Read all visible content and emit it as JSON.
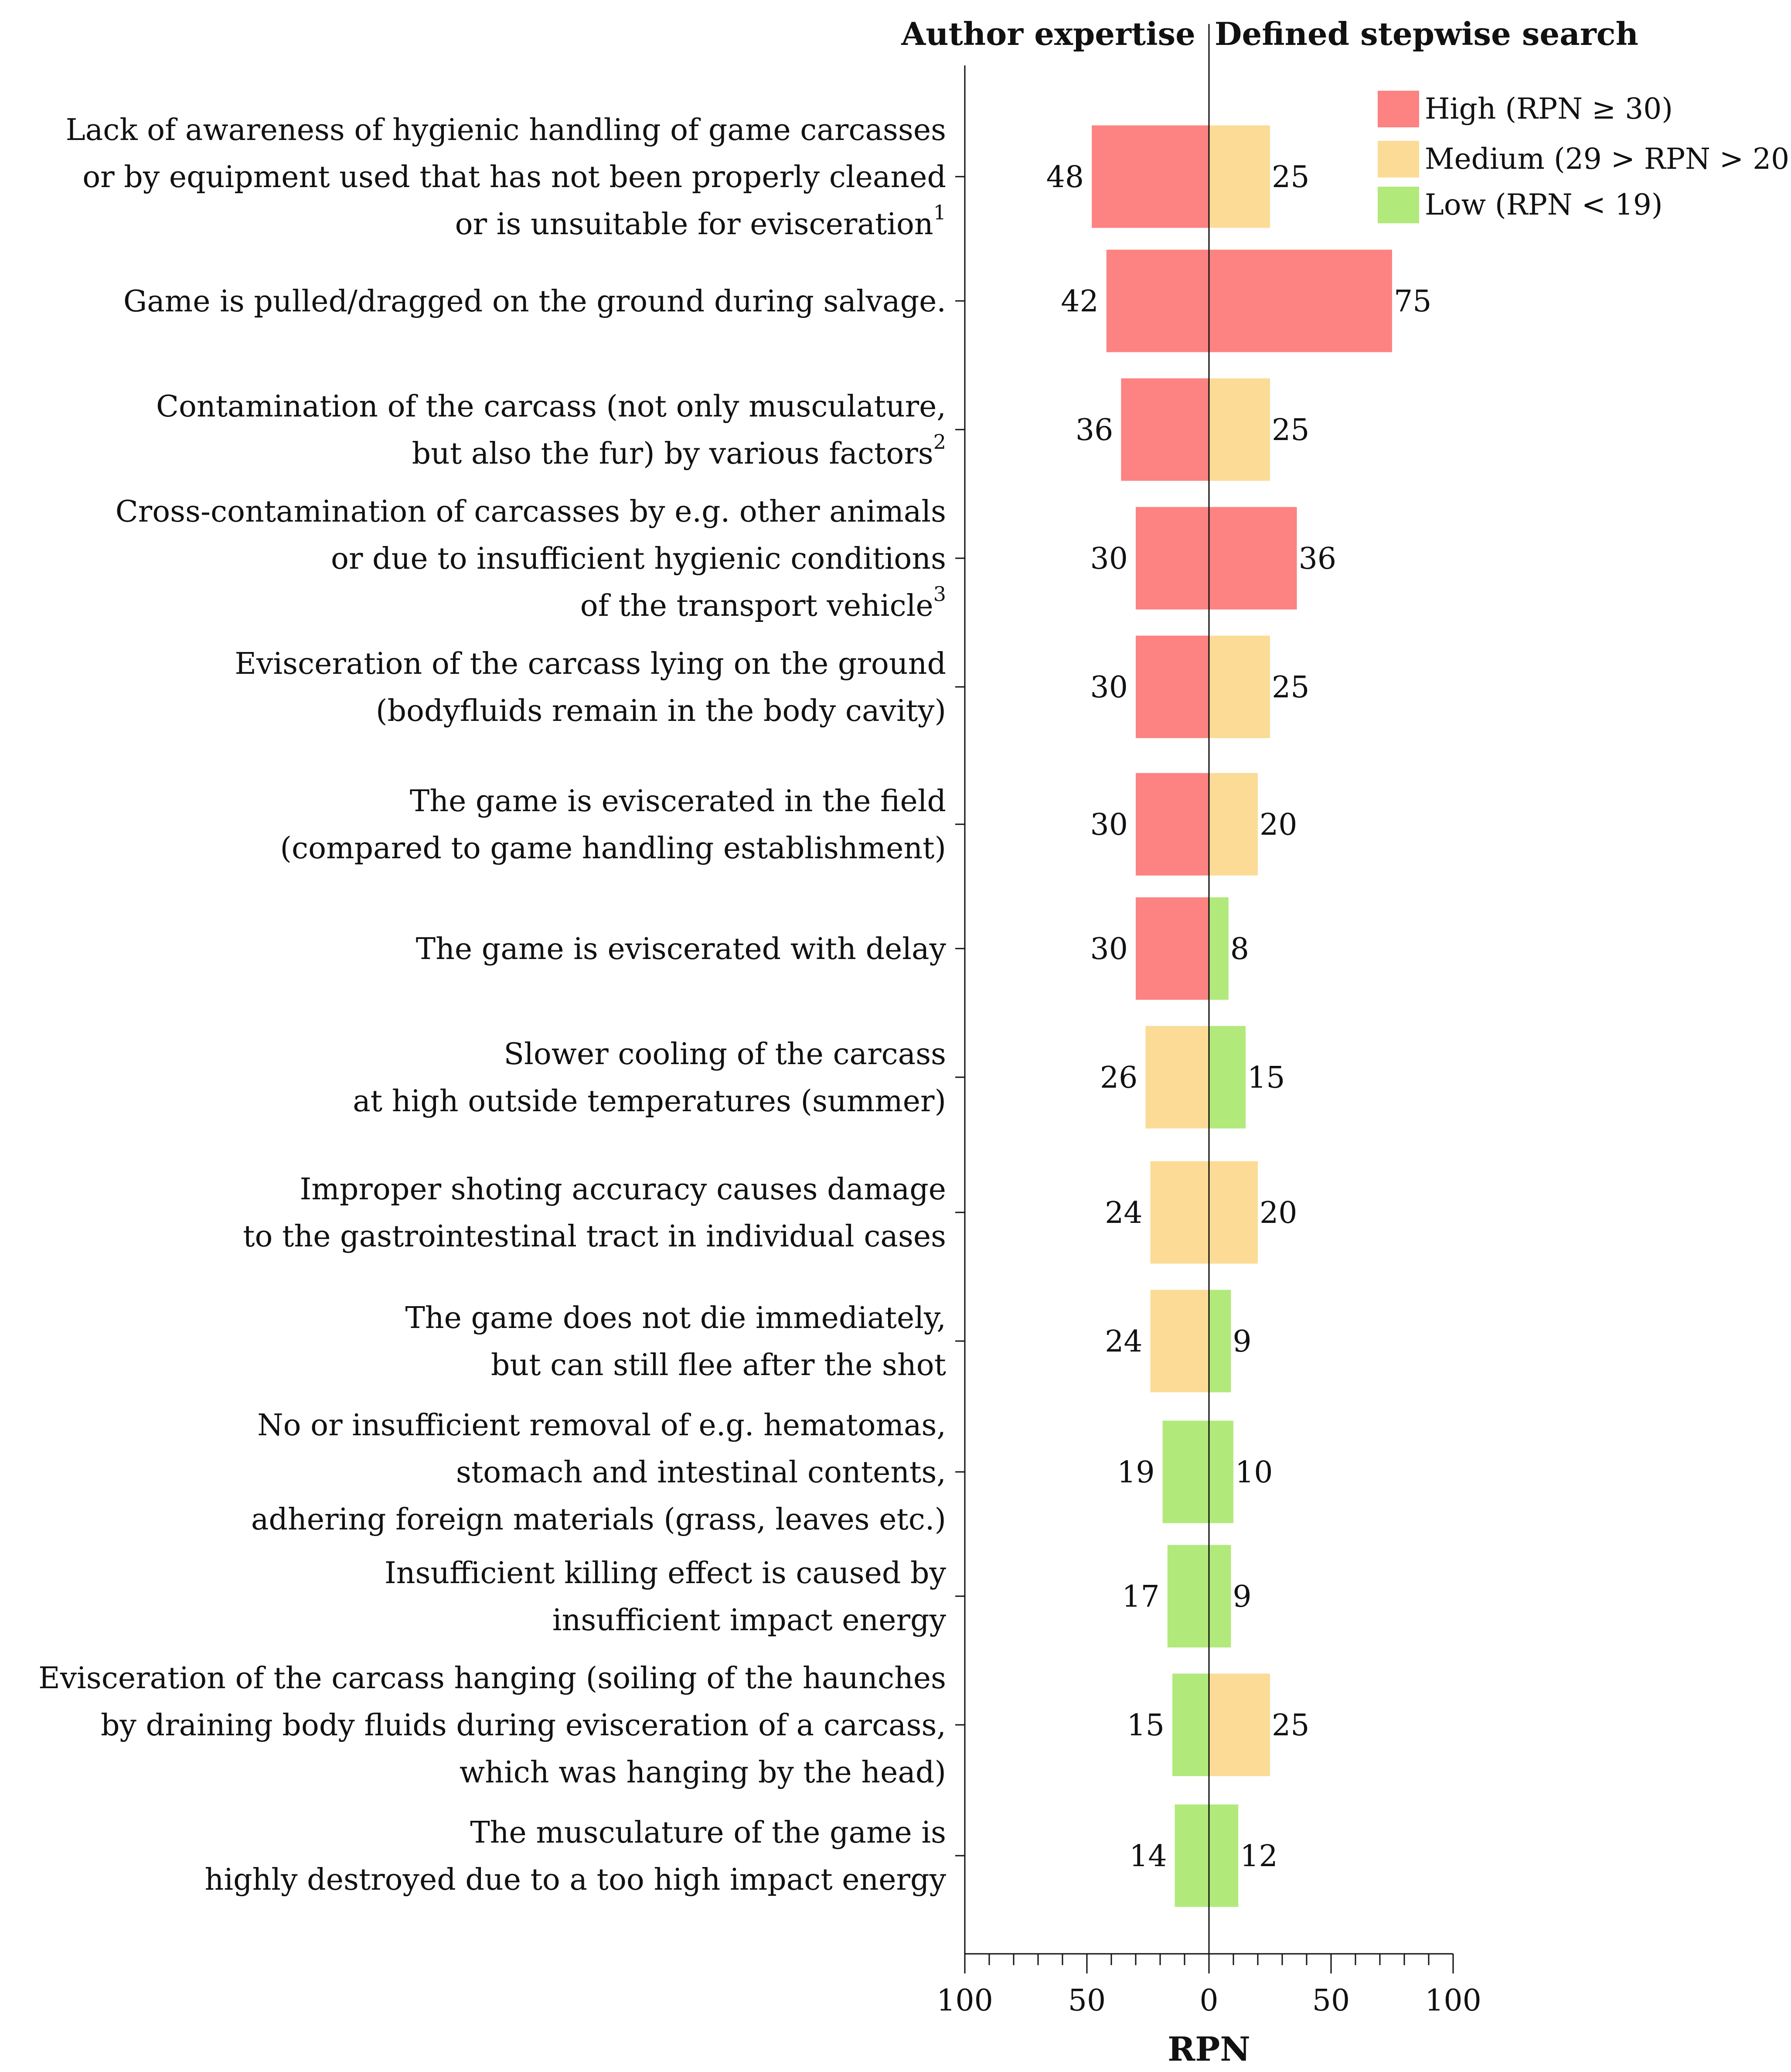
{
  "chart_data": {
    "type": "bar",
    "orientation": "horizontal",
    "layout": "diverging",
    "panel_titles": {
      "left": "Author expertise",
      "right": "Defined stepwise search"
    },
    "xlabel": "RPN",
    "xlim": [
      -100,
      100
    ],
    "xticks": [
      {
        "value": -100,
        "label": "100"
      },
      {
        "value": -50,
        "label": "50"
      },
      {
        "value": 0,
        "label": "0"
      },
      {
        "value": 50,
        "label": "50"
      },
      {
        "value": 100,
        "label": "100"
      }
    ],
    "colors": {
      "High": "#fd8282",
      "Medium": "#fbdb95",
      "Low": "#b1e97b"
    },
    "legend": [
      {
        "label": "High (RPN  ≥ 30)",
        "level": "High"
      },
      {
        "label": "Medium (29 > RPN > 20)",
        "level": "Medium"
      },
      {
        "label": "Low (RPN < 19)",
        "level": "Low"
      }
    ],
    "categories": [
      {
        "lines": [
          "Lack of awareness of hygienic handling of game carcasses",
          "or by equipment used that has not been properly cleaned",
          "or is unsuitable for evisceration"
        ],
        "sup": "1"
      },
      {
        "lines": [
          "Game is pulled/dragged on the ground during salvage."
        ],
        "sup": ""
      },
      {
        "lines": [
          "Contamination of the carcass (not only musculature,",
          "but also the fur) by various factors"
        ],
        "sup": "2"
      },
      {
        "lines": [
          "Cross-contamination of carcasses by e.g. other animals",
          "or due to insufficient hygienic conditions",
          "of the transport vehicle"
        ],
        "sup": "3"
      },
      {
        "lines": [
          "Evisceration of the carcass lying on the ground",
          "(bodyfluids remain in the body cavity)"
        ],
        "sup": ""
      },
      {
        "lines": [
          "The game is eviscerated in the field",
          "(compared to game handling establishment)"
        ],
        "sup": ""
      },
      {
        "lines": [
          "The game is eviscerated with delay"
        ],
        "sup": ""
      },
      {
        "lines": [
          "Slower cooling of the carcass",
          "at high outside temperatures (summer)"
        ],
        "sup": ""
      },
      {
        "lines": [
          "Improper shoting accuracy causes damage",
          "to the gastrointestinal tract in individual cases"
        ],
        "sup": ""
      },
      {
        "lines": [
          "The game does not die immediately,",
          "but can still flee after the shot"
        ],
        "sup": ""
      },
      {
        "lines": [
          "No or insufficient removal of e.g. hematomas,",
          "stomach and intestinal contents,",
          "adhering foreign materials (grass, leaves etc.)"
        ],
        "sup": ""
      },
      {
        "lines": [
          "Insufficient killing effect is caused by",
          "insufficient impact energy"
        ],
        "sup": ""
      },
      {
        "lines": [
          "Evisceration of the carcass hanging (soiling of the haunches",
          "by draining body fluids during evisceration of a carcass,",
          "which was hanging by the head)"
        ],
        "sup": ""
      },
      {
        "lines": [
          "The musculature of the game is",
          "highly destroyed due to a too high impact energy"
        ],
        "sup": ""
      }
    ],
    "series": [
      {
        "name": "Author expertise",
        "side": "left",
        "values": [
          48,
          42,
          36,
          30,
          30,
          30,
          30,
          26,
          24,
          24,
          19,
          17,
          15,
          14
        ],
        "levels": [
          "High",
          "High",
          "High",
          "High",
          "High",
          "High",
          "High",
          "Medium",
          "Medium",
          "Medium",
          "Low",
          "Low",
          "Low",
          "Low"
        ]
      },
      {
        "name": "Defined stepwise search",
        "side": "right",
        "values": [
          25,
          75,
          25,
          36,
          25,
          20,
          8,
          15,
          20,
          9,
          10,
          9,
          25,
          12
        ],
        "levels": [
          "Medium",
          "High",
          "Medium",
          "High",
          "Medium",
          "Medium",
          "Low",
          "Low",
          "Medium",
          "Low",
          "Low",
          "Low",
          "Medium",
          "Low"
        ]
      }
    ]
  }
}
